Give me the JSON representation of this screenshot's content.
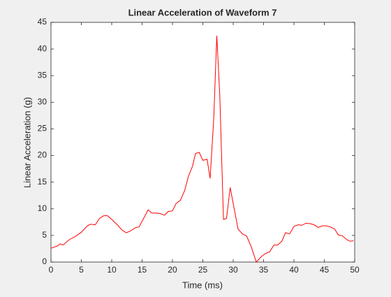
{
  "chart_data": {
    "type": "line",
    "title": "Linear Acceleration of Waveform 7",
    "xlabel": "Time (ms)",
    "ylabel": "Linear Acceleration (g)",
    "x": [
      0,
      1,
      1.5,
      2,
      3,
      4,
      5,
      6,
      6.5,
      7.3,
      8,
      8.7,
      9.3,
      10,
      11,
      11.7,
      12.4,
      13,
      14,
      14.5,
      15.3,
      16,
      16.6,
      17.3,
      18,
      18.7,
      19.3,
      20,
      20.6,
      21.3,
      22,
      22.6,
      23.3,
      23.8,
      24.4,
      25,
      25.7,
      26.2,
      26.8,
      27.3,
      27.8,
      28.4,
      28.9,
      29.5,
      30,
      30.8,
      31.5,
      32.2,
      33,
      33.8,
      34.7,
      35.3,
      36,
      36.7,
      37.3,
      38,
      38.6,
      39.3,
      40,
      40.7,
      41.3,
      42,
      42.7,
      43.3,
      44,
      44.7,
      45.3,
      46,
      46.7,
      47.3,
      48,
      48.7,
      49.3,
      49.8
    ],
    "series": [
      {
        "name": "Waveform 7",
        "color": "#ff0000",
        "values": [
          2.6,
          3,
          3.4,
          3.2,
          4.2,
          4.8,
          5.6,
          6.8,
          7.1,
          7,
          8.2,
          8.7,
          8.7,
          8,
          6.9,
          6,
          5.5,
          5.8,
          6.5,
          6.6,
          8.3,
          9.8,
          9.2,
          9.2,
          9.1,
          8.8,
          9.5,
          9.6,
          11,
          11.6,
          13.4,
          16,
          18,
          20.4,
          20.6,
          19.1,
          19.3,
          15.7,
          27,
          42.5,
          31,
          8,
          8.2,
          14,
          11,
          6.2,
          5.3,
          4.9,
          2.8,
          0,
          1.1,
          1.6,
          1.9,
          3.2,
          3.2,
          3.9,
          5.5,
          5.3,
          6.7,
          7,
          6.9,
          7.3,
          7.2,
          7,
          6.5,
          6.8,
          6.8,
          6.6,
          6.2,
          5.1,
          4.9,
          4.2,
          3.9,
          4
        ]
      }
    ],
    "xlim": [
      0,
      50
    ],
    "ylim": [
      0,
      45
    ],
    "xticks": [
      0,
      5,
      10,
      15,
      20,
      25,
      30,
      35,
      40,
      45,
      50
    ],
    "yticks": [
      0,
      5,
      10,
      15,
      20,
      25,
      30,
      35,
      40,
      45
    ]
  }
}
